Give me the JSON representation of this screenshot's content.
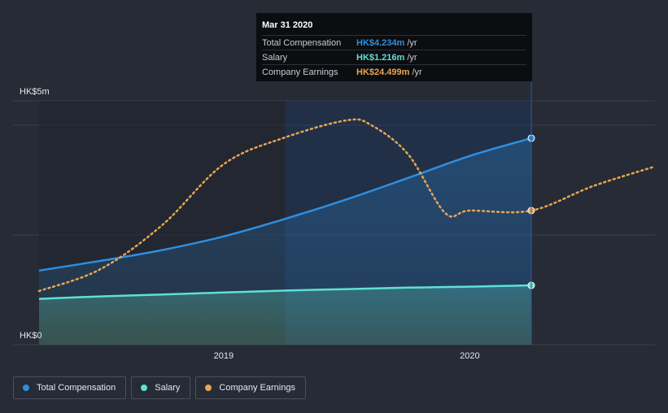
{
  "colors": {
    "total": "#2e8fe0",
    "salary": "#5fe0d2",
    "earnings": "#e8a54f",
    "grid": "#3a3f4a",
    "highlight": "#1a3a66"
  },
  "tooltip": {
    "date": "Mar 31 2020",
    "rows": [
      {
        "label": "Total Compensation",
        "value": "HK$4.234m",
        "unit": "/yr",
        "color": "#2e8fe0"
      },
      {
        "label": "Salary",
        "value": "HK$1.216m",
        "unit": "/yr",
        "color": "#5fe0d2"
      },
      {
        "label": "Company Earnings",
        "value": "HK$24.499m",
        "unit": "/yr",
        "color": "#e8a54f"
      }
    ]
  },
  "legend": [
    {
      "label": "Total Compensation",
      "color": "#2e8fe0"
    },
    {
      "label": "Salary",
      "color": "#5fe0d2"
    },
    {
      "label": "Company Earnings",
      "color": "#e8a54f"
    }
  ],
  "chart_data": {
    "type": "area",
    "title": "",
    "y_top_label": "HK$5m",
    "y_bottom_label": "HK$0",
    "ylim": [
      0,
      5
    ],
    "xlim": [
      2018.25,
      2020.75
    ],
    "x_ticks": [
      {
        "value": 2019.0,
        "label": "2019"
      },
      {
        "value": 2020.0,
        "label": "2020"
      }
    ],
    "highlight_range": [
      2019.25,
      2020.25
    ],
    "series": [
      {
        "name": "Total Compensation",
        "unit": "HK$m",
        "x": [
          2018.25,
          2018.5,
          2018.75,
          2019.0,
          2019.25,
          2019.5,
          2019.75,
          2020.0,
          2020.25
        ],
        "values": [
          1.52,
          1.72,
          1.94,
          2.22,
          2.58,
          2.98,
          3.42,
          3.87,
          4.234
        ],
        "style": "area"
      },
      {
        "name": "Salary",
        "unit": "HK$m",
        "x": [
          2018.25,
          2018.5,
          2018.75,
          2019.0,
          2019.25,
          2019.5,
          2019.75,
          2020.0,
          2020.25
        ],
        "values": [
          0.94,
          0.99,
          1.03,
          1.07,
          1.11,
          1.14,
          1.17,
          1.19,
          1.216
        ],
        "style": "area"
      },
      {
        "name": "Company Earnings",
        "unit": "relative",
        "x": [
          2018.25,
          2018.5,
          2018.75,
          2019.0,
          2019.25,
          2019.5,
          2019.6,
          2019.75,
          2019.9,
          2020.0,
          2020.25,
          2020.5,
          2020.75
        ],
        "values": [
          1.1,
          1.55,
          2.45,
          3.7,
          4.25,
          4.6,
          4.5,
          3.9,
          2.7,
          2.75,
          2.75,
          3.25,
          3.65
        ],
        "style": "dotted"
      }
    ]
  }
}
